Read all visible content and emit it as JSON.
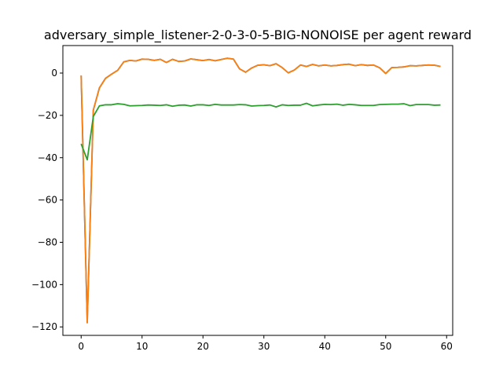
{
  "chart_data": {
    "type": "line",
    "title": "adversary_simple_listener-2-0-3-0-5-BIG-NONOISE per agent reward",
    "xlabel": "",
    "ylabel": "",
    "xlim": [
      -3,
      61
    ],
    "ylim": [
      -124,
      13
    ],
    "xticks": [
      0,
      10,
      20,
      30,
      40,
      50,
      60
    ],
    "yticks": [
      -120,
      -100,
      -80,
      -60,
      -40,
      -20,
      0
    ],
    "xtick_labels": [
      "0",
      "10",
      "20",
      "30",
      "40",
      "50",
      "60"
    ],
    "ytick_labels": [
      "−120",
      "−100",
      "−80",
      "−60",
      "−40",
      "−20",
      "0"
    ],
    "grid": false,
    "legend": "none",
    "series": [
      {
        "color": "#1f77b4",
        "x": [
          0,
          1,
          2,
          3,
          4,
          5,
          6,
          7,
          8,
          9,
          10,
          11,
          12,
          13,
          14,
          15,
          16,
          17,
          18,
          19,
          20,
          21,
          22,
          23,
          24,
          25,
          26,
          27,
          28,
          29,
          30,
          31,
          32,
          33,
          34,
          35,
          36,
          37,
          38,
          39,
          40,
          41,
          42,
          43,
          44,
          45,
          46,
          47,
          48,
          49,
          50,
          51,
          52,
          53,
          54,
          55,
          56,
          57,
          58,
          59
        ],
        "values": [
          -1.2,
          -118,
          -17.5,
          -7,
          -2.5,
          -0.5,
          1.3,
          5.3,
          6,
          5.7,
          6.6,
          6.5,
          6,
          6.5,
          5,
          6.5,
          5.5,
          5.7,
          6.7,
          6.3,
          5.9,
          6.4,
          5.8,
          6.4,
          7,
          6.6,
          2,
          0.4,
          2.4,
          3.7,
          3.9,
          3.5,
          4.4,
          2.6,
          0.1,
          1.4,
          3.8,
          3.1,
          4.1,
          3.4,
          3.8,
          3.4,
          3.6,
          4,
          4.2,
          3.5,
          4,
          3.6,
          3.8,
          2.5,
          -0.2,
          2.6,
          2.7,
          2.9,
          3.5,
          3.4,
          3.6,
          3.8,
          3.7,
          3.1
        ]
      },
      {
        "color": "#ff7f0e",
        "x": [
          0,
          1,
          2,
          3,
          4,
          5,
          6,
          7,
          8,
          9,
          10,
          11,
          12,
          13,
          14,
          15,
          16,
          17,
          18,
          19,
          20,
          21,
          22,
          23,
          24,
          25,
          26,
          27,
          28,
          29,
          30,
          31,
          32,
          33,
          34,
          35,
          36,
          37,
          38,
          39,
          40,
          41,
          42,
          43,
          44,
          45,
          46,
          47,
          48,
          49,
          50,
          51,
          52,
          53,
          54,
          55,
          56,
          57,
          58,
          59
        ],
        "values": [
          -1.2,
          -118,
          -17.5,
          -7,
          -2.5,
          -0.5,
          1.3,
          5.3,
          6,
          5.7,
          6.6,
          6.5,
          6,
          6.5,
          5,
          6.5,
          5.5,
          5.7,
          6.7,
          6.3,
          5.9,
          6.4,
          5.8,
          6.4,
          7,
          6.6,
          2,
          0.4,
          2.4,
          3.7,
          3.9,
          3.5,
          4.4,
          2.6,
          0.1,
          1.4,
          3.8,
          3.1,
          4.1,
          3.4,
          3.8,
          3.4,
          3.6,
          4,
          4.2,
          3.5,
          4,
          3.6,
          3.8,
          2.5,
          -0.2,
          2.6,
          2.7,
          2.9,
          3.5,
          3.4,
          3.6,
          3.8,
          3.7,
          3.1
        ]
      },
      {
        "color": "#2ca02c",
        "x": [
          0,
          1,
          2,
          3,
          4,
          5,
          6,
          7,
          8,
          9,
          10,
          11,
          12,
          13,
          14,
          15,
          16,
          17,
          18,
          19,
          20,
          21,
          22,
          23,
          24,
          25,
          26,
          27,
          28,
          29,
          30,
          31,
          32,
          33,
          34,
          35,
          36,
          37,
          38,
          39,
          40,
          41,
          42,
          43,
          44,
          45,
          46,
          47,
          48,
          49,
          50,
          51,
          52,
          53,
          54,
          55,
          56,
          57,
          58,
          59
        ],
        "values": [
          -33.5,
          -41,
          -20.5,
          -15.5,
          -15,
          -15,
          -14.5,
          -14.8,
          -15.5,
          -15.4,
          -15.3,
          -15.1,
          -15.2,
          -15.3,
          -15,
          -15.7,
          -15.2,
          -15.1,
          -15.6,
          -15,
          -15,
          -15.3,
          -14.8,
          -15.1,
          -15.1,
          -15.1,
          -14.9,
          -15,
          -15.6,
          -15.4,
          -15.3,
          -15.1,
          -16,
          -15,
          -15.3,
          -15.2,
          -15.2,
          -14.3,
          -15.5,
          -15.1,
          -14.8,
          -14.9,
          -14.7,
          -15.2,
          -14.8,
          -15,
          -15.3,
          -15.3,
          -15.3,
          -14.9,
          -14.8,
          -14.7,
          -14.7,
          -14.5,
          -15.4,
          -14.9,
          -14.9,
          -14.9,
          -15.2,
          -15.1
        ]
      }
    ]
  }
}
